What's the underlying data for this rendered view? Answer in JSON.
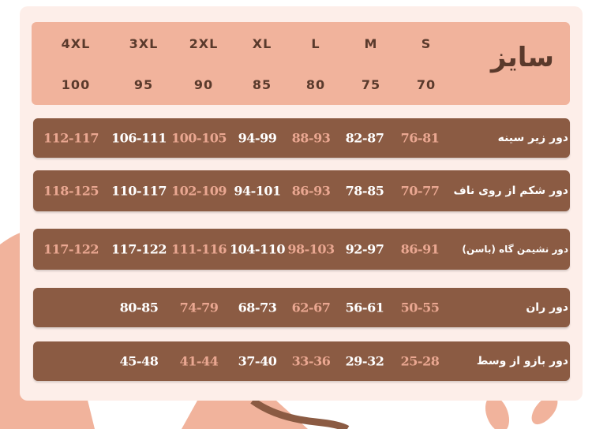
{
  "colors": {
    "card": "#fdeee9",
    "header": "#f1b39c",
    "row": "#8b5b43",
    "accent_text": "#eaa791",
    "light_text": "#ffffff"
  },
  "header": {
    "title": "سایز",
    "sizes": [
      {
        "label": "S",
        "number": "70"
      },
      {
        "label": "M",
        "number": "75"
      },
      {
        "label": "L",
        "number": "80"
      },
      {
        "label": "XL",
        "number": "85"
      },
      {
        "label": "2XL",
        "number": "90"
      },
      {
        "label": "3XL",
        "number": "95"
      },
      {
        "label": "4XL",
        "number": "100"
      }
    ]
  },
  "rows": [
    {
      "label": "دور زیر سینه",
      "values": [
        "76-81",
        "82-87",
        "88-93",
        "94-99",
        "100-105",
        "106-111",
        "112-117"
      ]
    },
    {
      "label": "دور شکم از روی ناف",
      "values": [
        "70-77",
        "78-85",
        "86-93",
        "94-101",
        "102-109",
        "110-117",
        "118-125"
      ]
    },
    {
      "label": "دور نشیمن گاه (باسن)",
      "values": [
        "86-91",
        "92-97",
        "98-103",
        "104-110",
        "111-116",
        "117-122",
        "117-122"
      ]
    },
    {
      "label": "دور ران",
      "values": [
        "50-55",
        "56-61",
        "62-67",
        "68-73",
        "74-79",
        "80-85",
        ""
      ]
    },
    {
      "label": "دور بازو از وسط",
      "values": [
        "25-28",
        "29-32",
        "33-36",
        "37-40",
        "41-44",
        "45-48",
        ""
      ]
    }
  ]
}
